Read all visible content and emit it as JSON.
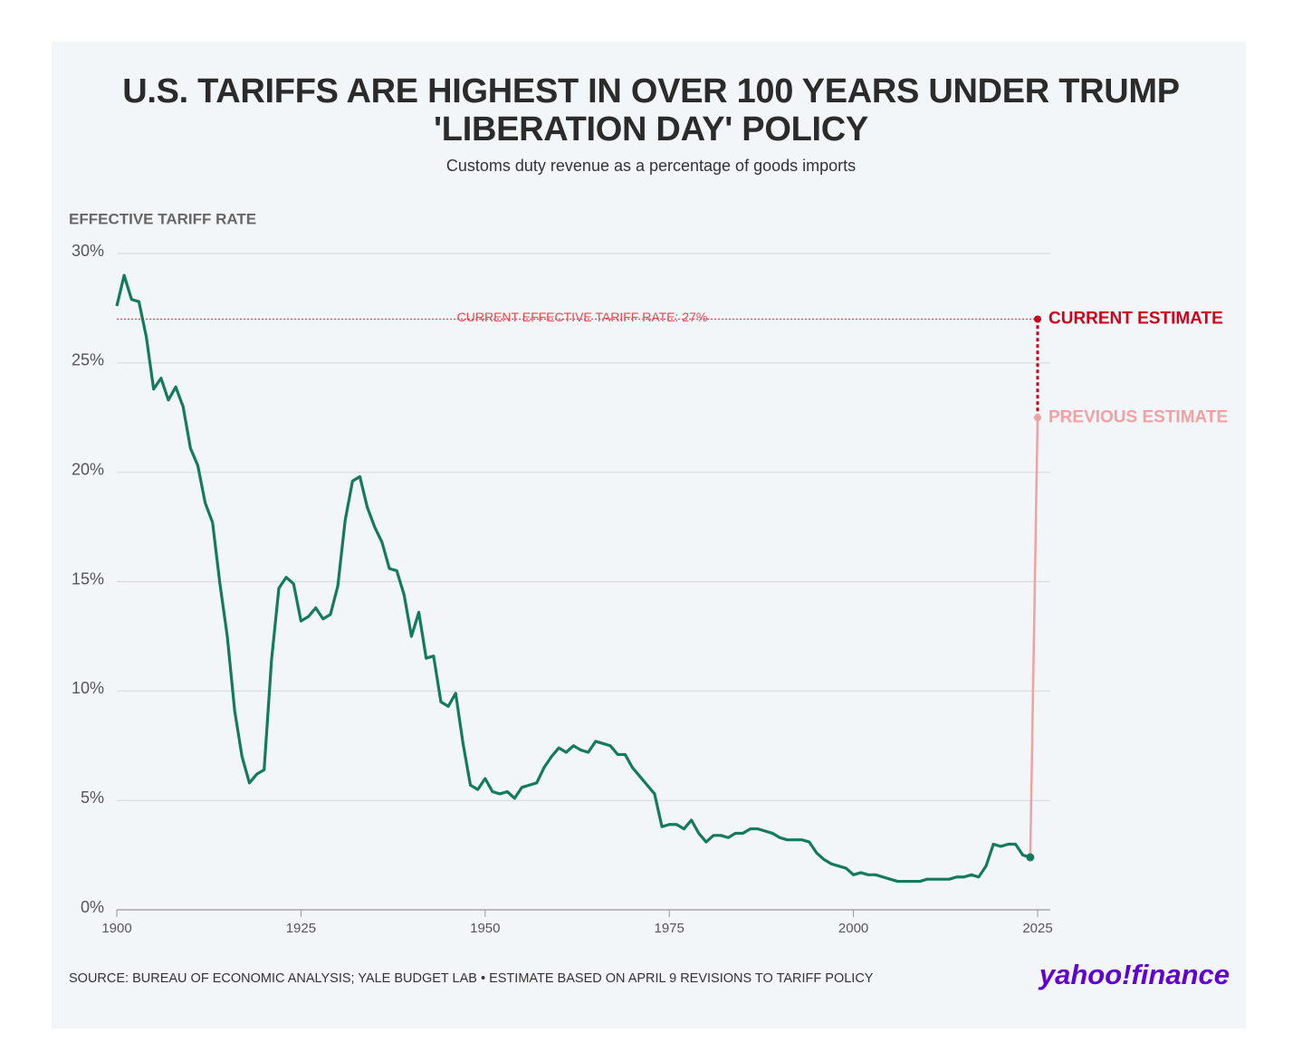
{
  "chart_data": {
    "type": "line",
    "title": "U.S. TARIFFS ARE HIGHEST IN OVER 100 YEARS UNDER TRUMP 'LIBERATION DAY' POLICY",
    "subtitle": "Customs duty revenue as a percentage of goods imports",
    "y_label": "EFFECTIVE TARIFF RATE",
    "source": "SOURCE: BUREAU OF ECONOMIC ANALYSIS; YALE BUDGET LAB • ESTIMATE BASED ON APRIL 9 REVISIONS TO TARIFF POLICY",
    "logo": "yahoo!finance",
    "xlim": [
      1900,
      2025
    ],
    "xticks": [
      1900,
      1925,
      1950,
      1975,
      2000,
      2025
    ],
    "ylim": [
      0,
      30
    ],
    "yticks": [
      {
        "value": 0,
        "label": "0%"
      },
      {
        "value": 5,
        "label": "5%"
      },
      {
        "value": 10,
        "label": "10%"
      },
      {
        "value": 15,
        "label": "15%"
      },
      {
        "value": 20,
        "label": "20%"
      },
      {
        "value": 25,
        "label": "25%"
      },
      {
        "value": 30,
        "label": "30%"
      }
    ],
    "grid": true,
    "x": [
      1900,
      1901,
      1902,
      1903,
      1904,
      1905,
      1906,
      1907,
      1908,
      1909,
      1910,
      1911,
      1912,
      1913,
      1914,
      1915,
      1916,
      1917,
      1918,
      1919,
      1920,
      1921,
      1922,
      1923,
      1924,
      1925,
      1926,
      1927,
      1928,
      1929,
      1930,
      1931,
      1932,
      1933,
      1934,
      1935,
      1936,
      1937,
      1938,
      1939,
      1940,
      1941,
      1942,
      1943,
      1944,
      1945,
      1946,
      1947,
      1948,
      1949,
      1950,
      1951,
      1952,
      1953,
      1954,
      1955,
      1956,
      1957,
      1958,
      1959,
      1960,
      1961,
      1962,
      1963,
      1964,
      1965,
      1966,
      1967,
      1968,
      1969,
      1970,
      1971,
      1972,
      1973,
      1974,
      1975,
      1976,
      1977,
      1978,
      1979,
      1980,
      1981,
      1982,
      1983,
      1984,
      1985,
      1986,
      1987,
      1988,
      1989,
      1990,
      1991,
      1992,
      1993,
      1994,
      1995,
      1996,
      1997,
      1998,
      1999,
      2000,
      2001,
      2002,
      2003,
      2004,
      2005,
      2006,
      2007,
      2008,
      2009,
      2010,
      2011,
      2012,
      2013,
      2014,
      2015,
      2016,
      2017,
      2018,
      2019,
      2020,
      2021,
      2022,
      2023,
      2024
    ],
    "series": [
      {
        "color": "#137a5e",
        "values": [
          27.6,
          29.0,
          27.9,
          27.8,
          26.2,
          23.8,
          24.3,
          23.3,
          23.9,
          23.0,
          21.1,
          20.3,
          18.6,
          17.7,
          14.9,
          12.5,
          9.1,
          7.0,
          5.8,
          6.2,
          6.4,
          11.4,
          14.7,
          15.2,
          14.9,
          13.2,
          13.4,
          13.8,
          13.3,
          13.5,
          14.8,
          17.8,
          19.6,
          19.8,
          18.4,
          17.5,
          16.8,
          15.6,
          15.5,
          14.4,
          12.5,
          13.6,
          11.5,
          11.6,
          9.5,
          9.3,
          9.9,
          7.6,
          5.7,
          5.5,
          6.0,
          5.4,
          5.3,
          5.4,
          5.1,
          5.6,
          5.7,
          5.8,
          6.5,
          7.0,
          7.4,
          7.2,
          7.5,
          7.3,
          7.2,
          7.7,
          7.6,
          7.5,
          7.1,
          7.1,
          6.5,
          6.1,
          5.7,
          5.3,
          3.8,
          3.9,
          3.9,
          3.7,
          4.1,
          3.5,
          3.1,
          3.4,
          3.4,
          3.3,
          3.5,
          3.5,
          3.7,
          3.7,
          3.6,
          3.5,
          3.3,
          3.2,
          3.2,
          3.2,
          3.1,
          2.6,
          2.3,
          2.1,
          2.0,
          1.9,
          1.6,
          1.7,
          1.6,
          1.6,
          1.5,
          1.4,
          1.3,
          1.3,
          1.3,
          1.3,
          1.4,
          1.4,
          1.4,
          1.4,
          1.5,
          1.5,
          1.6,
          1.5,
          2.0,
          3.0,
          2.9,
          3.0,
          3.0,
          2.5,
          2.4
        ]
      }
    ],
    "reference_line": {
      "value": 27,
      "label": "CURRENT EFFECTIVE TARIFF RATE: 27%",
      "color": "#e8474b"
    },
    "estimates": [
      {
        "name": "PREVIOUS ESTIMATE",
        "x": 2025,
        "value": 22.5,
        "color": "#f0a2a2"
      },
      {
        "name": "CURRENT ESTIMATE",
        "x": 2025,
        "value": 27,
        "color": "#d0021b"
      }
    ]
  }
}
